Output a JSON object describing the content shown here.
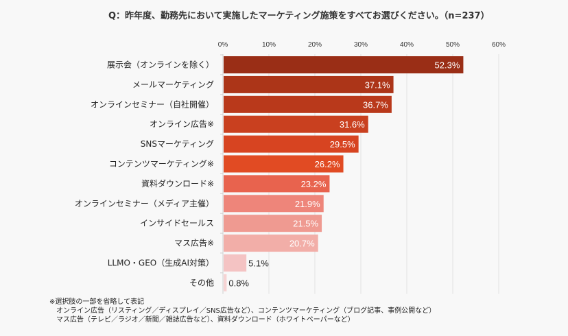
{
  "chart_data": {
    "type": "bar",
    "orientation": "horizontal",
    "title": "Q：昨年度、勤務先において実施したマーケティング施策をすべてお選びください。（n=237）",
    "categories": [
      "展示会（オンラインを除く）",
      "メールマーケティング",
      "オンラインセミナー（自社開催）",
      "オンライン広告※",
      "SNSマーケティング",
      "コンテンツマーケティング※",
      "資料ダウンロード※",
      "オンラインセミナー（メディア主催）",
      "インサイドセールス",
      "マス広告※",
      "LLMO・GEO（生成AI対策）",
      "その他"
    ],
    "values": [
      52.3,
      37.1,
      36.7,
      31.6,
      29.5,
      26.2,
      23.2,
      21.9,
      21.5,
      20.7,
      5.1,
      0.8
    ],
    "value_labels": [
      "52.3%",
      "37.1%",
      "36.7%",
      "31.6%",
      "29.5%",
      "26.2%",
      "23.2%",
      "21.9%",
      "21.5%",
      "20.7%",
      "5.1%",
      "0.8%"
    ],
    "xlim": [
      0,
      60
    ],
    "ticks": [
      "0%",
      "10%",
      "20%",
      "30%",
      "40%",
      "50%",
      "60%"
    ],
    "tick_values": [
      0,
      10,
      20,
      30,
      40,
      50,
      60
    ],
    "grid": true,
    "colors": [
      "#9a2e16",
      "#ac3518",
      "#b9391b",
      "#c9401f",
      "#d74421",
      "#e14b23",
      "#e8634e",
      "#ee857a",
      "#ef9a91",
      "#f2aea8",
      "#f4c3c3",
      "#f6d3d3"
    ]
  },
  "notes": [
    "※選択肢の一部を省略して表記",
    "　オンライン広告（リスティング／ディスプレイ／SNS広告など）、コンテンツマーケティング（ブログ記事、事例公開など）",
    "　マス広告（テレビ／ラジオ／新聞／雑誌広告など）、資料ダウンロード（ホワイトペーパーなど）"
  ]
}
